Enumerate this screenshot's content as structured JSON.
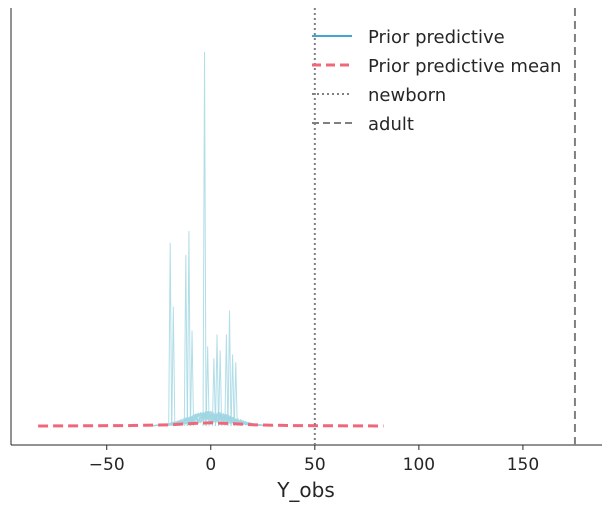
{
  "chart_data": {
    "type": "line",
    "title": "",
    "xlabel": "Y_obs",
    "ylabel": "",
    "xlim": [
      -96,
      188
    ],
    "ylim": [
      0,
      1
    ],
    "x_ticks": [
      -50,
      0,
      50,
      100,
      150
    ],
    "x_tick_labels": [
      "−50",
      "0",
      "50",
      "100",
      "150"
    ],
    "grid": false,
    "legend_position": "top-right",
    "colors": {
      "prior_predictive": "#3da9d1",
      "prior_predictive_draws": "#9fd6e2",
      "prior_predictive_mean": "#f0677a",
      "reference_lines": "#808080"
    },
    "series": [
      {
        "name": "Prior predictive",
        "style": "solid",
        "note_range_x": [
          -26,
          26
        ],
        "peaks": [
          {
            "x": -19.5,
            "y": 0.46
          },
          {
            "x": -18,
            "y": 0.3
          },
          {
            "x": -12,
            "y": 0.43
          },
          {
            "x": -10.5,
            "y": 0.49
          },
          {
            "x": -9,
            "y": 0.24
          },
          {
            "x": -3,
            "y": 0.94
          },
          {
            "x": -1.5,
            "y": 0.2
          },
          {
            "x": 1.5,
            "y": 0.17
          },
          {
            "x": 3,
            "y": 0.23
          },
          {
            "x": 4.5,
            "y": 0.19
          },
          {
            "x": 7.5,
            "y": 0.23
          },
          {
            "x": 9,
            "y": 0.29
          },
          {
            "x": 10.5,
            "y": 0.18
          },
          {
            "x": 12,
            "y": 0.16
          }
        ]
      },
      {
        "name": "Prior predictive mean",
        "style": "dashed",
        "points": [
          [
            -83,
            0.0
          ],
          [
            -40,
            0.001
          ],
          [
            -20,
            0.003
          ],
          [
            -10,
            0.006
          ],
          [
            0,
            0.008
          ],
          [
            10,
            0.006
          ],
          [
            20,
            0.003
          ],
          [
            40,
            0.001
          ],
          [
            83,
            0.0
          ]
        ]
      },
      {
        "name": "newborn",
        "style": "dotted",
        "type": "vline",
        "x": 50
      },
      {
        "name": "adult",
        "style": "dashed",
        "type": "vline",
        "x": 175
      }
    ]
  }
}
